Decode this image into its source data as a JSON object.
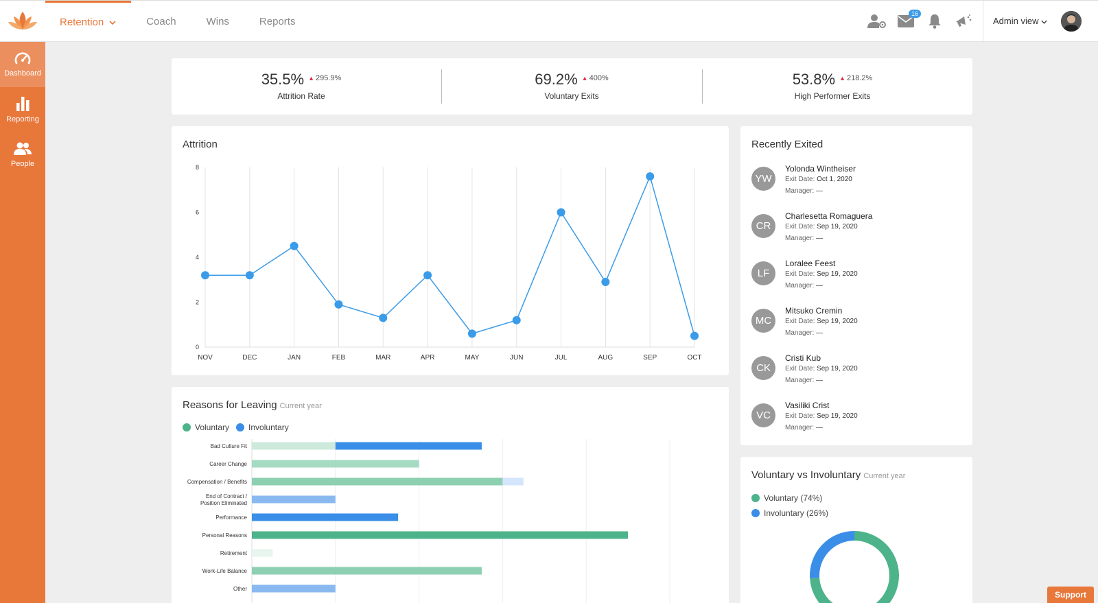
{
  "nav": {
    "items": [
      {
        "label": "Retention",
        "active": true
      },
      {
        "label": "Coach"
      },
      {
        "label": "Wins"
      },
      {
        "label": "Reports"
      }
    ]
  },
  "header": {
    "icons": [
      "user-settings-icon",
      "mail-icon",
      "bell-icon",
      "megaphone-icon"
    ],
    "mail_badge": "16",
    "admin_view": "Admin view"
  },
  "sidebar": {
    "items": [
      {
        "label": "Dashboard",
        "icon": "gauge-icon",
        "active": true
      },
      {
        "label": "Reporting",
        "icon": "bar-chart-icon"
      },
      {
        "label": "People",
        "icon": "people-icon"
      }
    ]
  },
  "kpis": [
    {
      "value": "35.5%",
      "delta": "295.9%",
      "label": "Attrition Rate"
    },
    {
      "value": "69.2%",
      "delta": "400%",
      "label": "Voluntary Exits"
    },
    {
      "value": "53.8%",
      "delta": "218.2%",
      "label": "High Performer Exits"
    }
  ],
  "attrition": {
    "title": "Attrition"
  },
  "reasons": {
    "title": "Reasons for Leaving",
    "subtitle": "Current year",
    "legend": [
      "Voluntary",
      "Involuntary"
    ]
  },
  "recently_exited": {
    "title": "Recently Exited",
    "date_label": "Exit Date:",
    "manager_label": "Manager:",
    "people": [
      {
        "initials": "YW",
        "name": "Yolonda Wintheiser",
        "date": "Oct 1, 2020",
        "manager": "—"
      },
      {
        "initials": "CR",
        "name": "Charlesetta Romaguera",
        "date": "Sep 19, 2020",
        "manager": "—"
      },
      {
        "initials": "LF",
        "name": "Loralee Feest",
        "date": "Sep 19, 2020",
        "manager": "—"
      },
      {
        "initials": "MC",
        "name": "Mitsuko Cremin",
        "date": "Sep 19, 2020",
        "manager": "—"
      },
      {
        "initials": "CK",
        "name": "Cristi Kub",
        "date": "Sep 19, 2020",
        "manager": "—"
      },
      {
        "initials": "VC",
        "name": "Vasiliki Crist",
        "date": "Sep 19, 2020",
        "manager": "—"
      }
    ]
  },
  "vvi": {
    "title": "Voluntary vs Involuntary",
    "subtitle": "Current year",
    "legend": [
      "Voluntary (74%)",
      "Involuntary (26%)"
    ]
  },
  "support_label": "Support",
  "colors": {
    "brand": "#e8773a",
    "line": "#3a9be8",
    "voluntary": "#4db38a",
    "involuntary": "#3a8ee8",
    "delta_up": "#e0314b"
  },
  "chart_data": [
    {
      "type": "line",
      "x": [
        "NOV",
        "DEC",
        "JAN",
        "FEB",
        "MAR",
        "APR",
        "MAY",
        "JUN",
        "JUL",
        "AUG",
        "SEP",
        "OCT"
      ],
      "series": [
        {
          "values": [
            3.2,
            3.2,
            4.5,
            1.9,
            1.3,
            3.2,
            0.6,
            1.2,
            6.0,
            2.9,
            7.6,
            0.5
          ]
        }
      ],
      "yticks": [
        0,
        2,
        4,
        6,
        8
      ],
      "ylim": [
        0,
        8
      ],
      "grid": "vertical"
    },
    {
      "type": "bar",
      "orientation": "horizontal",
      "stacked": true,
      "categories": [
        "Bad Culture Fit",
        "Career Change",
        "Compensation / Benefits",
        "End of Contract / Position Eliminated",
        "Performance",
        "Personal Reasons",
        "Retirement",
        "Work-Life Balance",
        "Other"
      ],
      "series": [
        {
          "name": "Voluntary",
          "values": [
            4,
            8,
            12,
            0,
            0,
            18,
            1,
            11,
            0
          ],
          "shades": [
            "#cdeadc",
            "#a6dbc3",
            "#8ccfb1",
            "#8ccfb1",
            "#8ccfb1",
            "#4db38a",
            "#e8f5ee",
            "#8ccfb1",
            "#8ccfb1"
          ]
        },
        {
          "name": "Involuntary",
          "values": [
            7,
            0,
            1,
            4,
            7,
            0,
            0,
            0,
            4
          ],
          "shades": [
            "#3a8ee8",
            "#3a8ee8",
            "#d3e6fb",
            "#8ab9f0",
            "#3a8ee8",
            "#3a8ee8",
            "#3a8ee8",
            "#3a8ee8",
            "#8ab9f0"
          ]
        }
      ],
      "xlim": [
        0,
        20
      ]
    },
    {
      "type": "pie",
      "donut": true,
      "labels": [
        "Voluntary",
        "Involuntary"
      ],
      "values": [
        74,
        26
      ]
    }
  ]
}
